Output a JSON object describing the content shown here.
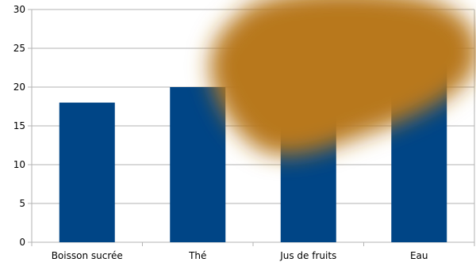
{
  "chart_data": {
    "type": "bar",
    "categories": [
      "Boisson sucrée",
      "Thé",
      "Jus de fruits",
      "Eau"
    ],
    "values": [
      18,
      20,
      19,
      23
    ],
    "ylim": [
      0,
      30
    ],
    "yticks": [
      0,
      5,
      10,
      15,
      20,
      25,
      30
    ],
    "grid": true,
    "legend": "none",
    "bar_color": "#004586",
    "grid_color": "#b3b3b3",
    "axis_color": "#b3b3b3",
    "overlay_blob_color": "#b8781f"
  }
}
